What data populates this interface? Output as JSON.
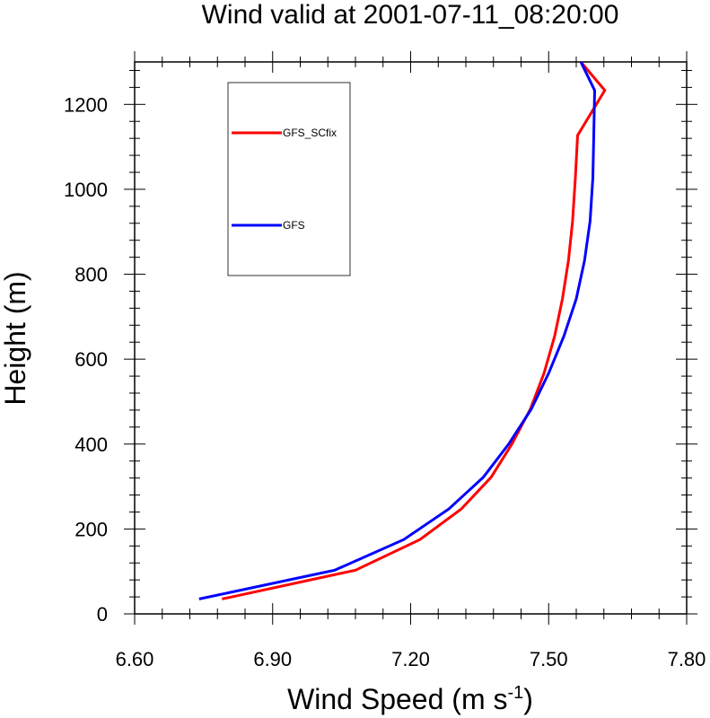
{
  "chart_data": {
    "type": "line",
    "title": "Wind valid at 2001-07-11_08:20:00",
    "xlabel": "Wind Speed (m s",
    "xlabel_superscript": "-1",
    "xlabel_suffix": ")",
    "ylabel": "Height (m)",
    "xlim": [
      6.6,
      7.8
    ],
    "ylim": [
      0,
      1300
    ],
    "xticks": [
      "6.60",
      "6.90",
      "7.20",
      "7.50",
      "7.80"
    ],
    "xtick_values": [
      6.6,
      6.9,
      7.2,
      7.5,
      7.8
    ],
    "yticks": [
      "0",
      "200",
      "400",
      "600",
      "800",
      "1000",
      "1200"
    ],
    "ytick_values": [
      0,
      200,
      400,
      600,
      800,
      1000,
      1200
    ],
    "legend_position": "top-left",
    "series": [
      {
        "name": "GFS_SCfix",
        "color": "#ff0000",
        "points": [
          [
            6.79,
            35
          ],
          [
            7.08,
            103
          ],
          [
            7.22,
            175
          ],
          [
            7.31,
            247
          ],
          [
            7.375,
            322
          ],
          [
            7.42,
            400
          ],
          [
            7.46,
            482
          ],
          [
            7.49,
            567
          ],
          [
            7.513,
            654
          ],
          [
            7.53,
            742
          ],
          [
            7.543,
            832
          ],
          [
            7.552,
            925
          ],
          [
            7.558,
            1027
          ],
          [
            7.563,
            1127
          ],
          [
            7.622,
            1233
          ],
          [
            7.57,
            1300
          ]
        ]
      },
      {
        "name": "GFS",
        "color": "#0000ff",
        "points": [
          [
            6.74,
            35
          ],
          [
            7.035,
            103
          ],
          [
            7.185,
            175
          ],
          [
            7.283,
            247
          ],
          [
            7.358,
            322
          ],
          [
            7.413,
            400
          ],
          [
            7.462,
            482
          ],
          [
            7.5,
            567
          ],
          [
            7.533,
            654
          ],
          [
            7.56,
            742
          ],
          [
            7.578,
            832
          ],
          [
            7.59,
            925
          ],
          [
            7.596,
            1027
          ],
          [
            7.598,
            1127
          ],
          [
            7.6,
            1233
          ],
          [
            7.57,
            1300
          ]
        ]
      }
    ]
  }
}
